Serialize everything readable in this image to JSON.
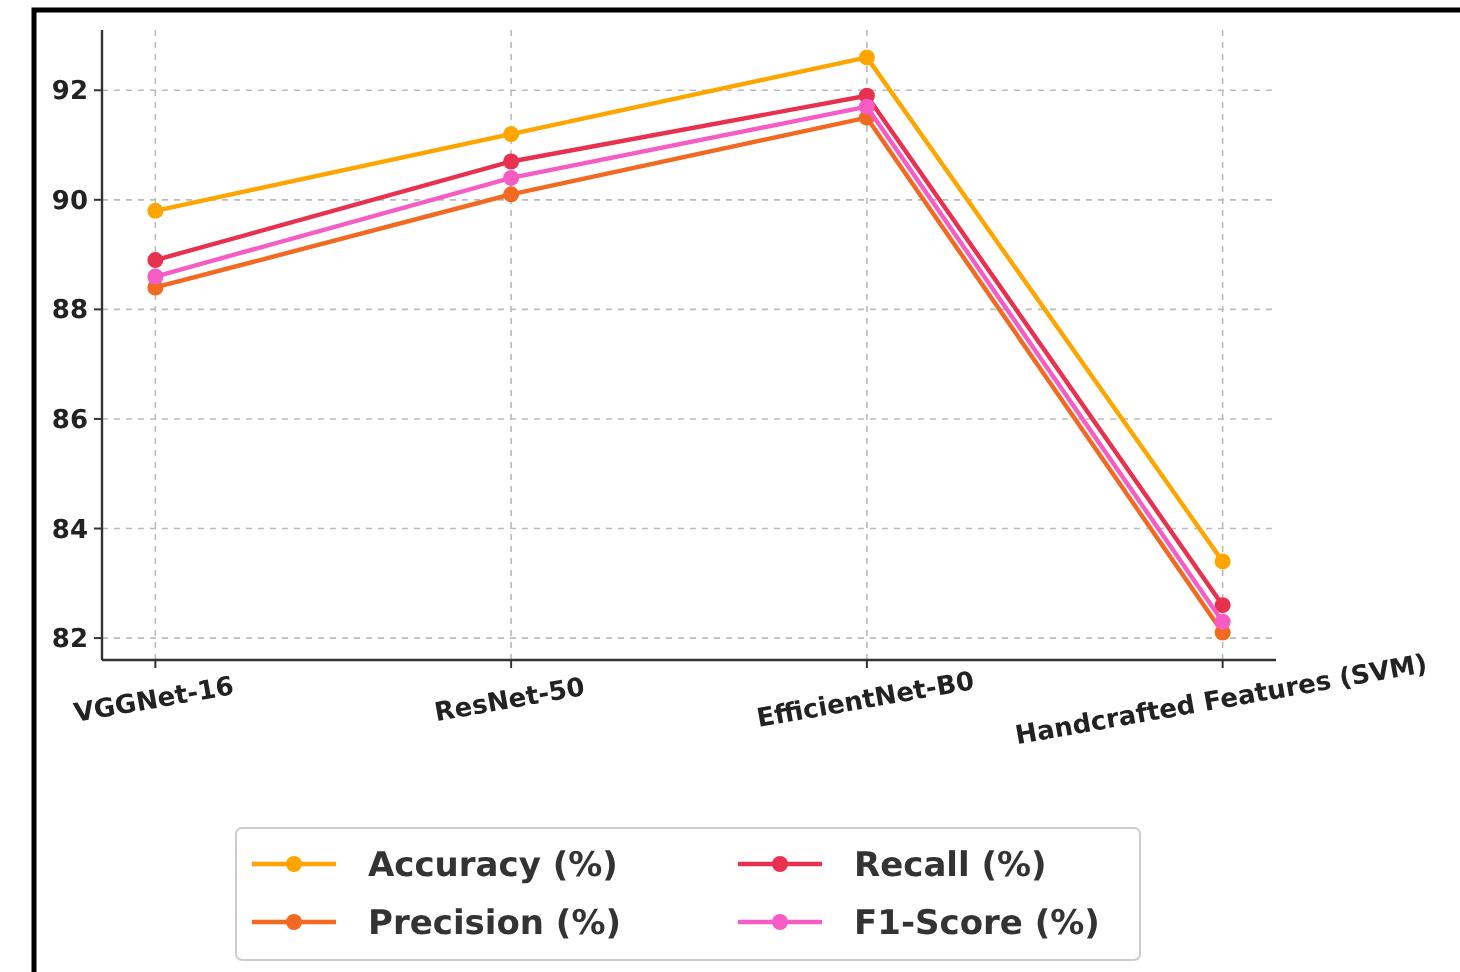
{
  "chart_data": {
    "type": "line",
    "categories": [
      "VGGNet-16",
      "ResNet-50",
      "EfficientNet-B0",
      "Handcrafted Features (SVM)"
    ],
    "series": [
      {
        "name": "Accuracy (%)",
        "color": "#ffa500",
        "values": [
          89.8,
          91.2,
          92.6,
          83.4
        ]
      },
      {
        "name": "Precision (%)",
        "color": "#f26a21",
        "values": [
          88.4,
          90.1,
          91.5,
          82.1
        ]
      },
      {
        "name": "Recall (%)",
        "color": "#e8304f",
        "values": [
          88.9,
          90.7,
          91.9,
          82.6
        ]
      },
      {
        "name": "F1-Score (%)",
        "color": "#f55cc4",
        "values": [
          88.6,
          90.4,
          91.7,
          82.3
        ]
      }
    ],
    "ylim": [
      81.6,
      93.1
    ],
    "yticks": [
      82,
      84,
      86,
      88,
      90,
      92
    ],
    "grid": true,
    "legend": "bottom",
    "marker": "circle",
    "line_style": "solid"
  }
}
